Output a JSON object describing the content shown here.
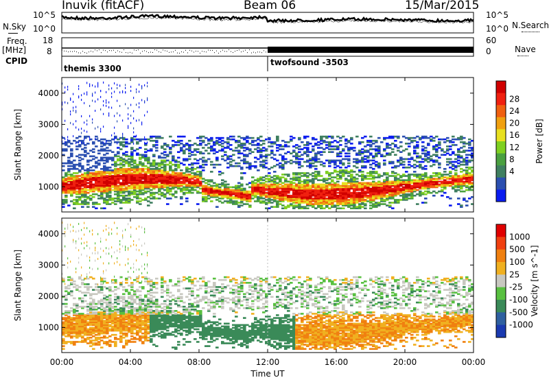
{
  "header": {
    "station": "Inuvik (fitACF)",
    "beam": "Beam 06",
    "date": "15/Mar/2015"
  },
  "top_panels": {
    "nsky_label": "N.Sky",
    "nsearch_label": "N.Search",
    "noise_left_ticks": [
      "10^5",
      "10^0"
    ],
    "noise_right_ticks": [
      "10^5",
      "10^0"
    ],
    "freq_label": "Freq.",
    "freq_unit": "[MHz]",
    "freq_ticks": [
      "18",
      "8"
    ],
    "nave_label": "Nave",
    "nave_ticks": [
      "60",
      "0"
    ],
    "cpid_label": "CPID",
    "cpid_segments": [
      {
        "name": "themis 3300",
        "start_hour": 0.0,
        "end_hour": 12.0
      },
      {
        "name": "twofsound -3503",
        "start_hour": 12.0,
        "end_hour": 24.0
      }
    ]
  },
  "chart_data": [
    {
      "type": "heatmap",
      "panel": "power",
      "ylabel": "Slant Range [km]",
      "yticks": [
        "1000",
        "2000",
        "3000",
        "4000"
      ],
      "ylim": [
        200,
        4500
      ],
      "x_ticks": [
        "00:00",
        "04:00",
        "08:00",
        "12:00",
        "16:00",
        "20:00",
        "00:00"
      ],
      "xlim_hours": [
        0,
        24
      ],
      "colorbar": {
        "label": "Power [dB]",
        "ticks": [
          "28",
          "24",
          "20",
          "16",
          "12",
          "8",
          "4"
        ],
        "range": [
          0,
          30
        ],
        "colors": [
          "#0a1cf0",
          "#2b4fb0",
          "#3f7f60",
          "#4aa040",
          "#7fd020",
          "#e8e020",
          "#f0a010",
          "#f06010",
          "#f02010",
          "#d00000"
        ]
      }
    },
    {
      "type": "heatmap",
      "panel": "velocity",
      "ylabel": "Slant Range [km]",
      "yticks": [
        "1000",
        "2000",
        "3000",
        "4000"
      ],
      "ylim": [
        200,
        4500
      ],
      "x_ticks": [
        "00:00",
        "04:00",
        "08:00",
        "12:00",
        "16:00",
        "20:00",
        "00:00"
      ],
      "xlim_hours": [
        0,
        24
      ],
      "xlabel": "Time UT",
      "colorbar": {
        "label": "Velocity [m s^-1]",
        "ticks": [
          "1000",
          "500",
          "100",
          "25",
          "-25",
          "-100",
          "-500",
          "-1000"
        ],
        "colors": [
          "#1a3ab0",
          "#2f60a0",
          "#3a8a58",
          "#58c040",
          "#c8c8c0",
          "#f0b020",
          "#f08010",
          "#f04010",
          "#e00000"
        ]
      }
    }
  ]
}
